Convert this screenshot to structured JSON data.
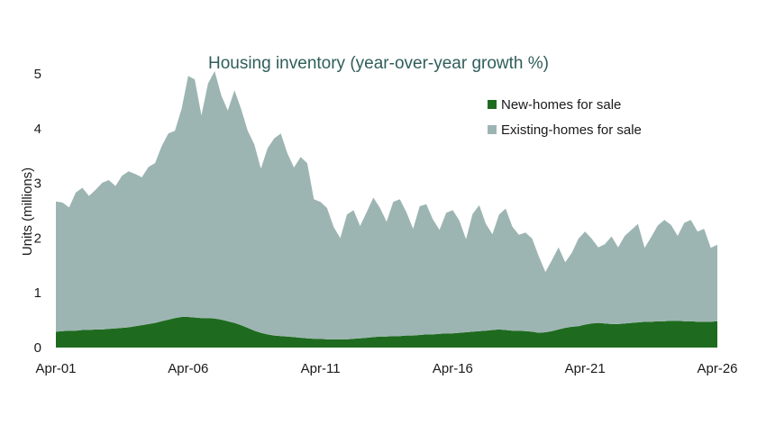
{
  "chart_data": {
    "type": "area",
    "stacked": true,
    "title": "Housing inventory (year-over-year growth  %)",
    "xlabel": "",
    "ylabel": "Units (millions)",
    "xlim": [
      2001.25,
      2026.25
    ],
    "ylim": [
      0,
      5
    ],
    "x_ticks": [
      {
        "value": 2001.25,
        "label": "Apr-01"
      },
      {
        "value": 2006.25,
        "label": "Apr-06"
      },
      {
        "value": 2011.25,
        "label": "Apr-11"
      },
      {
        "value": 2016.25,
        "label": "Apr-16"
      },
      {
        "value": 2021.25,
        "label": "Apr-21"
      },
      {
        "value": 2026.25,
        "label": "Apr-26"
      }
    ],
    "y_ticks": [
      0,
      1,
      2,
      3,
      4,
      5
    ],
    "grid": false,
    "legend_position": "top-right",
    "x": [
      2001.25,
      2001.5,
      2001.75,
      2002.0,
      2002.25,
      2002.5,
      2002.75,
      2003.0,
      2003.25,
      2003.5,
      2003.75,
      2004.0,
      2004.25,
      2004.5,
      2004.75,
      2005.0,
      2005.25,
      2005.5,
      2005.75,
      2006.0,
      2006.25,
      2006.5,
      2006.75,
      2007.0,
      2007.25,
      2007.5,
      2007.75,
      2008.0,
      2008.25,
      2008.5,
      2008.75,
      2009.0,
      2009.25,
      2009.5,
      2009.75,
      2010.0,
      2010.25,
      2010.5,
      2010.75,
      2011.0,
      2011.25,
      2011.5,
      2011.75,
      2012.0,
      2012.25,
      2012.5,
      2012.75,
      2013.0,
      2013.25,
      2013.5,
      2013.75,
      2014.0,
      2014.25,
      2014.5,
      2014.75,
      2015.0,
      2015.25,
      2015.5,
      2015.75,
      2016.0,
      2016.25,
      2016.5,
      2016.75,
      2017.0,
      2017.25,
      2017.5,
      2017.75,
      2018.0,
      2018.25,
      2018.5,
      2018.75,
      2019.0,
      2019.25,
      2019.5,
      2019.75,
      2020.0,
      2020.25,
      2020.5,
      2020.75,
      2021.0,
      2021.25,
      2021.5,
      2021.75,
      2022.0,
      2022.25,
      2022.5,
      2022.75,
      2023.0,
      2023.25,
      2023.5,
      2023.75,
      2024.0,
      2024.25,
      2024.5,
      2024.75,
      2025.0,
      2025.25,
      2025.5,
      2025.75,
      2026.0,
      2026.25
    ],
    "series": [
      {
        "name": "New-homes for sale",
        "color": "#1e6b1f",
        "values": [
          0.29,
          0.3,
          0.31,
          0.31,
          0.32,
          0.32,
          0.33,
          0.33,
          0.34,
          0.35,
          0.36,
          0.37,
          0.39,
          0.41,
          0.43,
          0.45,
          0.48,
          0.51,
          0.54,
          0.56,
          0.56,
          0.55,
          0.54,
          0.54,
          0.53,
          0.51,
          0.48,
          0.45,
          0.41,
          0.36,
          0.31,
          0.27,
          0.24,
          0.22,
          0.21,
          0.2,
          0.19,
          0.18,
          0.17,
          0.16,
          0.16,
          0.15,
          0.15,
          0.15,
          0.15,
          0.16,
          0.17,
          0.18,
          0.19,
          0.2,
          0.2,
          0.21,
          0.21,
          0.22,
          0.22,
          0.23,
          0.24,
          0.24,
          0.25,
          0.26,
          0.26,
          0.27,
          0.28,
          0.29,
          0.3,
          0.31,
          0.32,
          0.33,
          0.32,
          0.31,
          0.31,
          0.3,
          0.29,
          0.27,
          0.28,
          0.3,
          0.33,
          0.36,
          0.38,
          0.39,
          0.42,
          0.44,
          0.45,
          0.44,
          0.43,
          0.43,
          0.44,
          0.45,
          0.46,
          0.47,
          0.47,
          0.48,
          0.48,
          0.49,
          0.49,
          0.48,
          0.48,
          0.47,
          0.47,
          0.47,
          0.48
        ]
      },
      {
        "name": "Existing-homes for sale",
        "color": "#9db5b2",
        "values": [
          2.38,
          2.35,
          2.25,
          2.52,
          2.6,
          2.45,
          2.55,
          2.68,
          2.72,
          2.6,
          2.78,
          2.85,
          2.78,
          2.7,
          2.87,
          2.92,
          3.2,
          3.4,
          3.42,
          3.8,
          4.4,
          4.35,
          3.7,
          4.28,
          4.52,
          4.1,
          3.85,
          4.25,
          3.95,
          3.6,
          3.4,
          3.0,
          3.4,
          3.6,
          3.7,
          3.35,
          3.1,
          3.3,
          3.2,
          2.55,
          2.5,
          2.4,
          2.05,
          1.85,
          2.28,
          2.35,
          2.05,
          2.3,
          2.55,
          2.35,
          2.1,
          2.45,
          2.5,
          2.25,
          1.95,
          2.35,
          2.38,
          2.1,
          1.9,
          2.2,
          2.25,
          2.05,
          1.7,
          2.15,
          2.3,
          1.95,
          1.75,
          2.1,
          2.22,
          1.9,
          1.75,
          1.8,
          1.7,
          1.4,
          1.1,
          1.3,
          1.5,
          1.2,
          1.35,
          1.6,
          1.7,
          1.55,
          1.38,
          1.45,
          1.6,
          1.4,
          1.6,
          1.7,
          1.8,
          1.35,
          1.55,
          1.75,
          1.85,
          1.75,
          1.55,
          1.8,
          1.85,
          1.65,
          1.7,
          1.35,
          1.4
        ]
      }
    ]
  }
}
